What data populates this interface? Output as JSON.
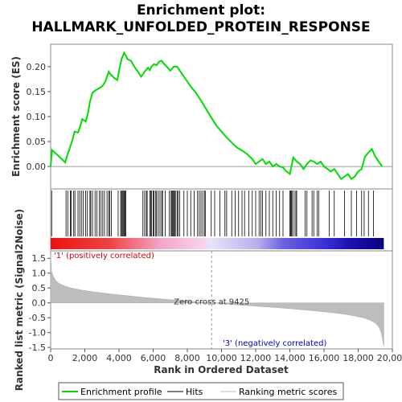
{
  "chart_data": {
    "type": "line",
    "title_line1": "Enrichment plot:",
    "title_line2": "HALLMARK_UNFOLDED_PROTEIN_RESPONSE",
    "es_panel": {
      "ylabel": "Enrichment score (ES)",
      "ylim": [
        -0.045,
        0.245
      ],
      "yticks": [
        0.0,
        0.05,
        0.1,
        0.15,
        0.2
      ],
      "ytick_labels": [
        "0.00",
        "0.05",
        "0.10",
        "0.15",
        "0.20"
      ],
      "series": [
        {
          "name": "Enrichment profile",
          "color": "#00dd00",
          "x": [
            0,
            80,
            500,
            850,
            950,
            1100,
            1250,
            1400,
            1600,
            1750,
            1850,
            2050,
            2200,
            2300,
            2450,
            2600,
            2750,
            2900,
            3050,
            3200,
            3400,
            3500,
            3700,
            3900,
            4050,
            4150,
            4300,
            4400,
            4500,
            4700,
            4900,
            5100,
            5300,
            5500,
            5700,
            5800,
            5900,
            6050,
            6200,
            6350,
            6500,
            6650,
            6850,
            7000,
            7200,
            7400,
            7600,
            7900,
            8200,
            8500,
            8800,
            9100,
            9400,
            9700,
            10000,
            10300,
            10600,
            10900,
            11200,
            11500,
            11800,
            12000,
            12200,
            12400,
            12600,
            12800,
            13000,
            13200,
            13400,
            13600,
            13800,
            14000,
            14200,
            14400,
            14600,
            14800,
            15000,
            15200,
            15400,
            15600,
            15800,
            16000,
            16200,
            16400,
            16600,
            16800,
            17000,
            17200,
            17400,
            17600,
            17800,
            18000,
            18200,
            18400,
            18600,
            18800,
            19000,
            19200,
            19400
          ],
          "y": [
            0.0,
            0.033,
            0.02,
            0.008,
            0.02,
            0.035,
            0.05,
            0.07,
            0.068,
            0.083,
            0.095,
            0.09,
            0.11,
            0.13,
            0.148,
            0.152,
            0.155,
            0.158,
            0.162,
            0.17,
            0.19,
            0.185,
            0.178,
            0.173,
            0.2,
            0.215,
            0.228,
            0.222,
            0.215,
            0.212,
            0.2,
            0.19,
            0.18,
            0.19,
            0.198,
            0.193,
            0.2,
            0.205,
            0.203,
            0.21,
            0.212,
            0.205,
            0.198,
            0.192,
            0.2,
            0.2,
            0.19,
            0.175,
            0.16,
            0.148,
            0.132,
            0.115,
            0.098,
            0.082,
            0.07,
            0.058,
            0.048,
            0.038,
            0.032,
            0.025,
            0.015,
            0.005,
            0.01,
            0.015,
            0.005,
            0.01,
            0.0,
            0.005,
            0.0,
            -0.002,
            -0.01,
            -0.015,
            0.018,
            0.01,
            0.005,
            -0.005,
            0.005,
            0.012,
            0.01,
            0.005,
            0.01,
            0.0,
            -0.005,
            -0.01,
            -0.005,
            -0.015,
            -0.025,
            -0.02,
            -0.015,
            -0.025,
            -0.02,
            -0.01,
            -0.005,
            0.02,
            0.028,
            0.035,
            0.02,
            0.01,
            0.0
          ]
        }
      ]
    },
    "hits_panel": {
      "hit_positions": [
        60,
        900,
        1000,
        1150,
        1200,
        1350,
        1420,
        1600,
        1700,
        1800,
        1900,
        2050,
        2150,
        2300,
        2350,
        2450,
        2600,
        2700,
        2850,
        2950,
        3050,
        3150,
        3300,
        3400,
        3450,
        3550,
        3950,
        4100,
        4150,
        4200,
        4250,
        4300,
        4350,
        4400,
        5400,
        5500,
        5600,
        5650,
        5800,
        5850,
        5900,
        6000,
        6050,
        6150,
        6200,
        6300,
        6400,
        6500,
        6550,
        6700,
        6950,
        7050,
        7100,
        7150,
        7200,
        7250,
        7300,
        7400,
        7450,
        7550,
        7800,
        8000,
        8200,
        8400,
        8600,
        8700,
        8800,
        8900,
        9000,
        9050,
        9400,
        9600,
        9900,
        10200,
        10300,
        10600,
        10800,
        11000,
        11200,
        11350,
        11600,
        11800,
        12000,
        12200,
        12300,
        12400,
        12600,
        12800,
        13000,
        13200,
        13400,
        13600,
        14000,
        14050,
        14100,
        14150,
        14250,
        14350,
        14400,
        14900,
        15000,
        15300,
        15400,
        15600,
        15700,
        16300,
        16600,
        17200,
        17600,
        17900,
        18200,
        18350,
        18600,
        18900
      ]
    },
    "ranked_panel": {
      "ylabel": "Ranked list metric (Signal2Noise)",
      "ylim": [
        -1.55,
        1.75
      ],
      "yticks": [
        -1.5,
        -1.0,
        -0.5,
        0.0,
        0.5,
        1.0,
        1.5
      ],
      "ytick_labels": [
        "-1.5",
        "-1.0",
        "-0.5",
        "0.0",
        "0.5",
        "1.0",
        "1.5"
      ],
      "metric_x": [
        0,
        50,
        150,
        300,
        500,
        800,
        1200,
        1800,
        2500,
        3500,
        4500,
        5500,
        6500,
        7500,
        8500,
        9425,
        10500,
        11500,
        12500,
        13500,
        14500,
        15500,
        16500,
        17200,
        17800,
        18300,
        18700,
        19000,
        19200,
        19350,
        19450,
        19500
      ],
      "metric_y": [
        1.6,
        1.05,
        0.9,
        0.75,
        0.65,
        0.57,
        0.5,
        0.43,
        0.37,
        0.3,
        0.24,
        0.18,
        0.13,
        0.08,
        0.04,
        0.0,
        -0.05,
        -0.09,
        -0.13,
        -0.17,
        -0.22,
        -0.27,
        -0.33,
        -0.38,
        -0.44,
        -0.5,
        -0.58,
        -0.68,
        -0.8,
        -1.0,
        -1.3,
        -1.45
      ],
      "zero_cross_label": "Zero cross at 9425",
      "zero_cross_x": 9425,
      "positive_label": "'1' (positively correlated)",
      "negative_label": "'3' (negatively correlated)",
      "positive_color": "#dd0000",
      "negative_color": "#0000cc"
    },
    "xaxis": {
      "xlabel": "Rank in Ordered Dataset",
      "xlim": [
        0,
        20000
      ],
      "xticks": [
        0,
        2000,
        4000,
        6000,
        8000,
        10000,
        12000,
        14000,
        16000,
        18000,
        20000
      ],
      "xtick_labels": [
        "0",
        "2,000",
        "4,000",
        "6,000",
        "8,000",
        "10,000",
        "12,000",
        "14,000",
        "16,000",
        "18,000",
        "20,000"
      ],
      "data_max": 19500
    },
    "legend": {
      "items": [
        {
          "label": "Enrichment profile",
          "color": "#00dd00"
        },
        {
          "label": "Hits",
          "color": "#000000"
        },
        {
          "label": "Ranking metric scores",
          "color": "#bbbbbb"
        }
      ]
    }
  }
}
